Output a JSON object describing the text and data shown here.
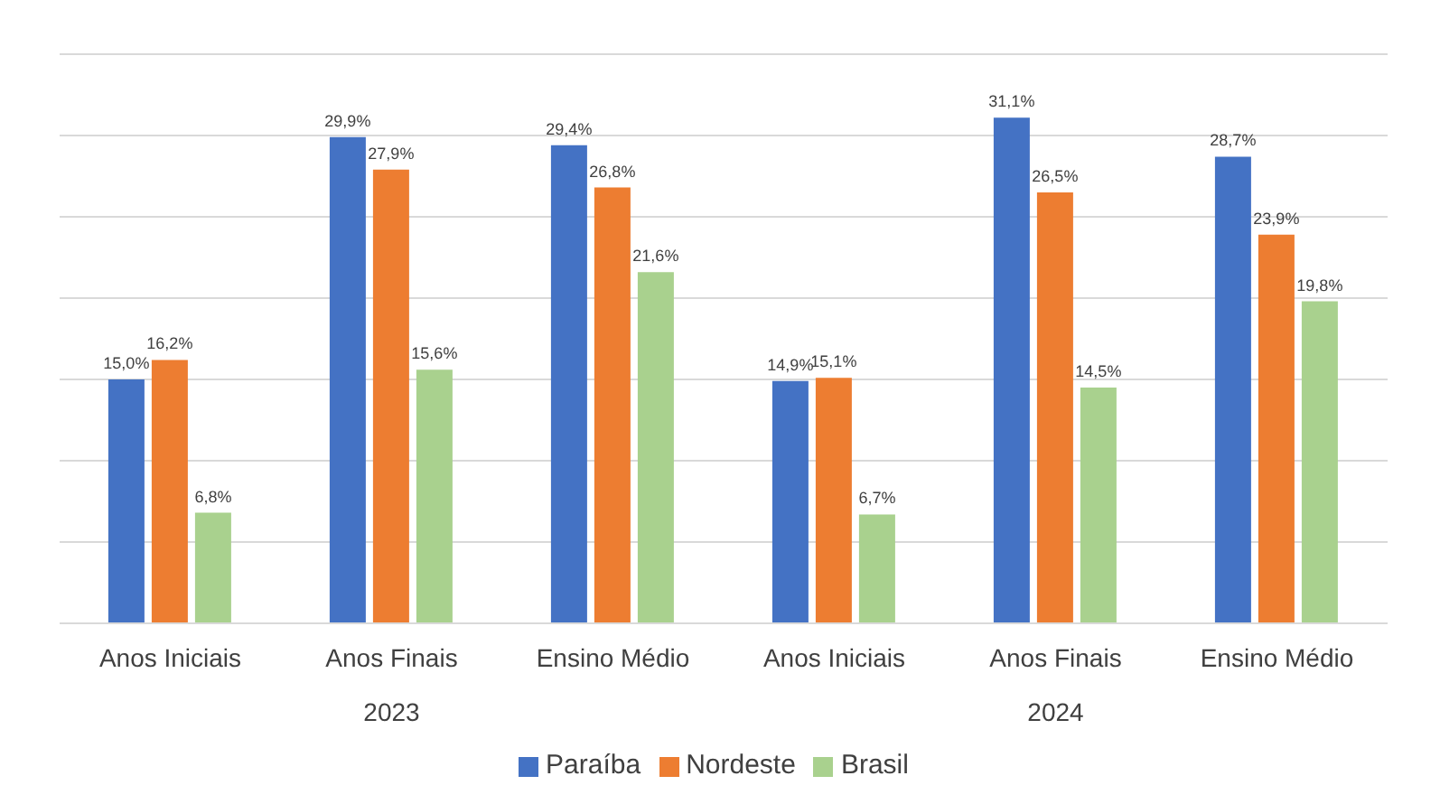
{
  "chart_data": {
    "type": "bar",
    "categories": [
      "Anos Iniciais",
      "Anos Finais",
      "Ensino Médio",
      "Anos Iniciais",
      "Anos Finais",
      "Ensino Médio"
    ],
    "annotations": [
      "2023",
      "2024"
    ],
    "series": [
      {
        "name": "Paraíba",
        "color": "#4472c4",
        "values": [
          15.0,
          29.9,
          29.4,
          14.9,
          31.1,
          28.7
        ],
        "value_labels": [
          "15,0%",
          "29,9%",
          "29,4%",
          "14,9%",
          "31,1%",
          "28,7%"
        ]
      },
      {
        "name": "Nordeste",
        "color": "#ed7d31",
        "values": [
          16.2,
          27.9,
          26.8,
          15.1,
          26.5,
          23.9
        ],
        "value_labels": [
          "16,2%",
          "27,9%",
          "26,8%",
          "15,1%",
          "26,5%",
          "23,9%"
        ]
      },
      {
        "name": "Brasil",
        "color": "#a9d18e",
        "values": [
          6.8,
          15.6,
          21.6,
          6.7,
          14.5,
          19.8
        ],
        "value_labels": [
          "6,8%",
          "15,6%",
          "21,6%",
          "6,7%",
          "14,5%",
          "19,8%"
        ]
      }
    ],
    "ylim": [
      0,
      35
    ],
    "tick_labels": "x",
    "grid": "y",
    "legend": "bottom"
  }
}
